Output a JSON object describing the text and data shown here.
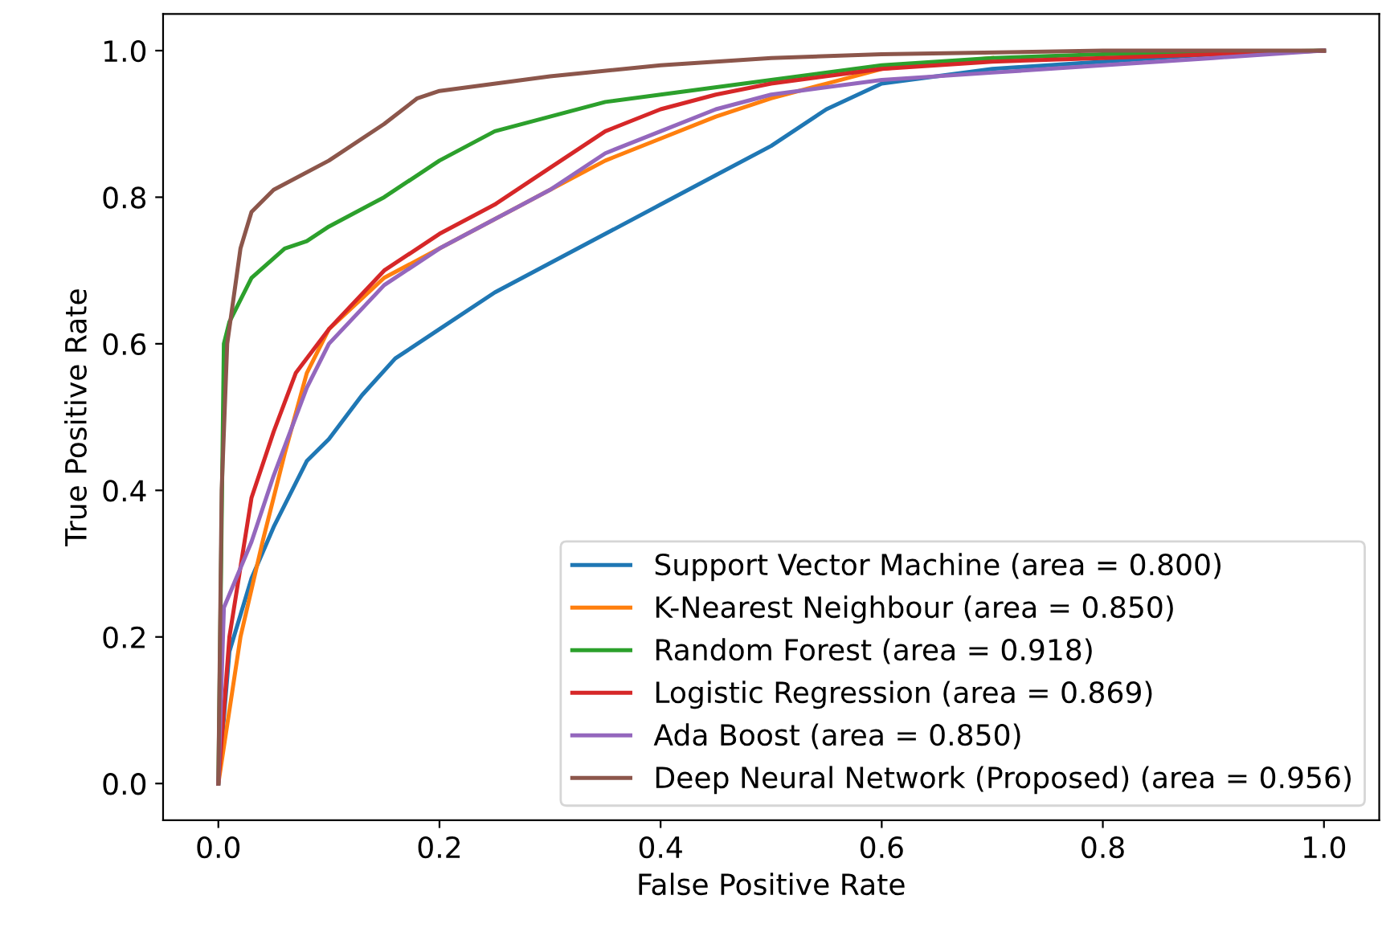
{
  "chart_data": {
    "type": "line",
    "xlabel": "False Positive Rate",
    "ylabel": "True Positive Rate",
    "xlim": [
      -0.05,
      1.05
    ],
    "ylim": [
      -0.05,
      1.05
    ],
    "xticks": [
      {
        "value": 0,
        "label": "0.0"
      },
      0.2,
      0.4,
      0.6,
      0.8,
      {
        "value": 1,
        "label": "1.0"
      }
    ],
    "yticks": [
      {
        "value": 0,
        "label": "0.0"
      },
      0.2,
      0.4,
      0.6,
      0.8,
      {
        "value": 1,
        "label": "1.0"
      }
    ],
    "grid": false,
    "legend": "bottom right",
    "marker": "none",
    "line_style": "solid",
    "series": [
      {
        "name": "Support Vector Machine (area = 0.800)",
        "color": "#1f77b4",
        "x": [
          0,
          0.01,
          0.03,
          0.05,
          0.08,
          0.1,
          0.13,
          0.16,
          0.2,
          0.25,
          0.3,
          0.35,
          0.4,
          0.45,
          0.5,
          0.55,
          0.6,
          0.7,
          0.8,
          0.9,
          1
        ],
        "values": [
          0,
          0.18,
          0.28,
          0.35,
          0.44,
          0.47,
          0.53,
          0.58,
          0.62,
          0.67,
          0.71,
          0.75,
          0.79,
          0.83,
          0.87,
          0.92,
          0.955,
          0.975,
          0.985,
          0.995,
          1
        ]
      },
      {
        "name": "K-Nearest Neighbour (area = 0.850)",
        "color": "#ff7f0e",
        "x": [
          0,
          0.02,
          0.04,
          0.06,
          0.08,
          0.1,
          0.15,
          0.2,
          0.25,
          0.3,
          0.35,
          0.4,
          0.45,
          0.5,
          0.55,
          0.6,
          0.7
        ],
        "values": [
          0,
          0.2,
          0.33,
          0.45,
          0.56,
          0.62,
          0.69,
          0.73,
          0.77,
          0.81,
          0.85,
          0.88,
          0.91,
          0.935,
          0.955,
          0.975,
          0.99
        ]
      },
      {
        "name": "Random Forest (area = 0.918)",
        "color": "#2ca02c",
        "x": [
          0,
          0.005,
          0.01,
          0.03,
          0.06,
          0.08,
          0.1,
          0.15,
          0.2,
          0.25,
          0.3,
          0.35,
          0.4,
          0.5,
          0.6,
          0.7,
          0.8,
          1
        ],
        "values": [
          0,
          0.6,
          0.63,
          0.69,
          0.73,
          0.74,
          0.76,
          0.8,
          0.85,
          0.89,
          0.91,
          0.93,
          0.94,
          0.96,
          0.98,
          0.99,
          0.995,
          1
        ]
      },
      {
        "name": "Logistic Regression (area = 0.869)",
        "color": "#d62728",
        "x": [
          0,
          0.01,
          0.03,
          0.05,
          0.07,
          0.1,
          0.15,
          0.2,
          0.25,
          0.3,
          0.35,
          0.4,
          0.45,
          0.5,
          0.6,
          0.7,
          0.8,
          1
        ],
        "values": [
          0,
          0.2,
          0.39,
          0.48,
          0.56,
          0.62,
          0.7,
          0.75,
          0.79,
          0.84,
          0.89,
          0.92,
          0.94,
          0.955,
          0.975,
          0.985,
          0.99,
          1
        ]
      },
      {
        "name": "Ada Boost (area = 0.850)",
        "color": "#9467bd",
        "x": [
          0,
          0.005,
          0.03,
          0.05,
          0.08,
          0.1,
          0.15,
          0.2,
          0.25,
          0.3,
          0.35,
          0.4,
          0.45,
          0.5,
          0.6,
          0.7,
          0.8,
          0.9,
          1
        ],
        "values": [
          0,
          0.24,
          0.33,
          0.42,
          0.54,
          0.6,
          0.68,
          0.73,
          0.77,
          0.81,
          0.86,
          0.89,
          0.92,
          0.94,
          0.96,
          0.97,
          0.98,
          0.99,
          1
        ]
      },
      {
        "name": "Deep Neural Network (Proposed) (area = 0.956)",
        "color": "#8c564b",
        "x": [
          0,
          0.003,
          0.008,
          0.02,
          0.03,
          0.05,
          0.1,
          0.15,
          0.18,
          0.2,
          0.3,
          0.4,
          0.5,
          0.6,
          0.8,
          1
        ],
        "values": [
          0,
          0.4,
          0.6,
          0.73,
          0.78,
          0.81,
          0.85,
          0.9,
          0.935,
          0.945,
          0.965,
          0.98,
          0.99,
          0.995,
          1.0,
          1
        ]
      }
    ]
  }
}
